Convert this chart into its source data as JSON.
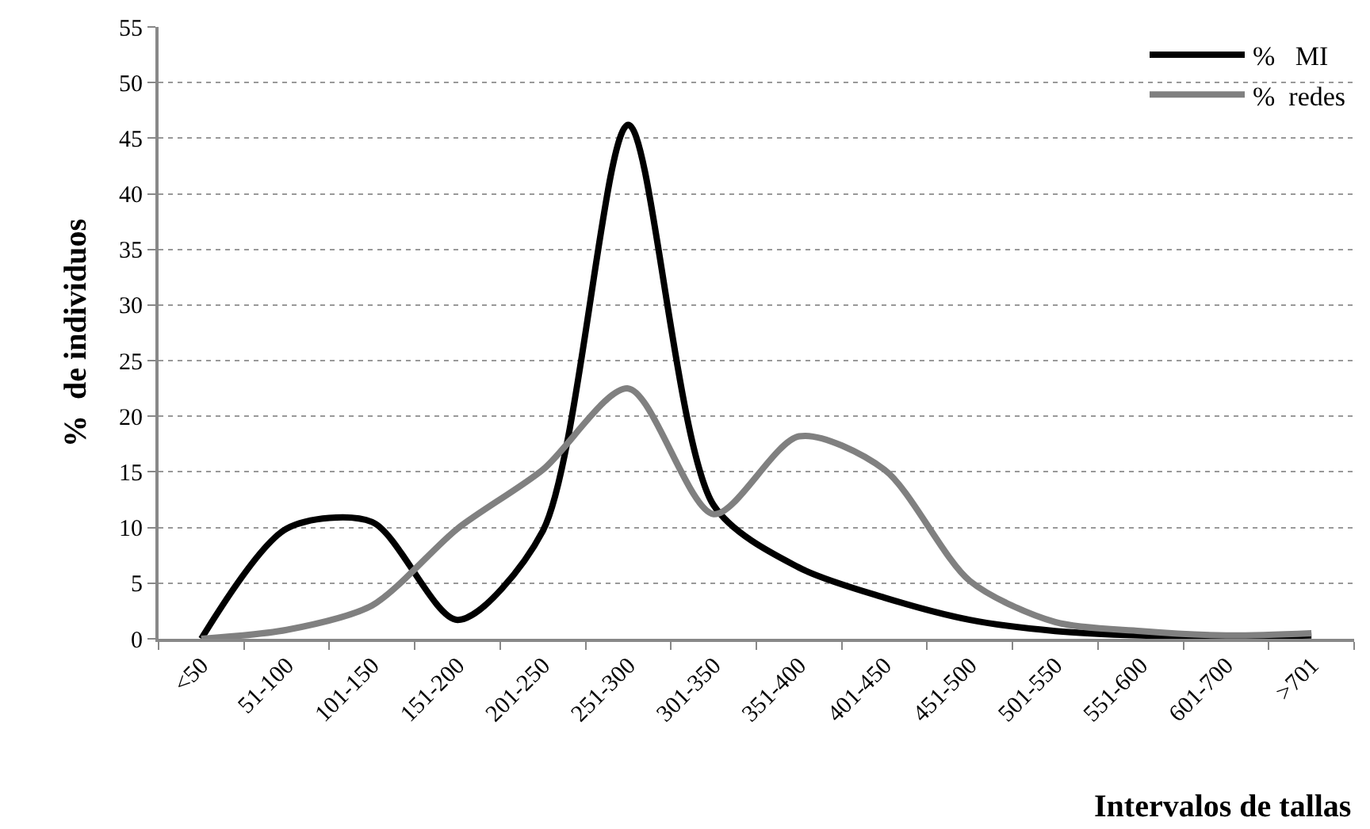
{
  "chart_data": {
    "type": "line",
    "xlabel": "Intervalos de tallas",
    "ylabel": "%  de individuos",
    "categories": [
      "<50",
      "51-100",
      "101-150",
      "151-200",
      "201-250",
      "251-300",
      "301-350",
      "351-400",
      "401-450",
      "451-500",
      "501-550",
      "551-600",
      "601-700",
      ">701"
    ],
    "series": [
      {
        "name": "%   MI",
        "color": "#000000",
        "values": [
          0,
          9.9,
          10.5,
          1.7,
          9.7,
          46.2,
          12,
          6.4,
          3.7,
          1.7,
          0.7,
          0.3,
          0.2,
          0.3
        ]
      },
      {
        "name": "%  redes",
        "color": "#808080",
        "values": [
          0,
          0.8,
          3,
          9.9,
          15.2,
          22.5,
          11.2,
          18.2,
          15.2,
          5.2,
          1.5,
          0.7,
          0.3,
          0.5
        ]
      }
    ],
    "ylim": [
      0,
      55
    ],
    "yticks": [
      0,
      5,
      10,
      15,
      20,
      25,
      30,
      35,
      40,
      45,
      50,
      55
    ],
    "grid": "y",
    "legend": "top right",
    "marker": "none",
    "line_style": "solid"
  }
}
